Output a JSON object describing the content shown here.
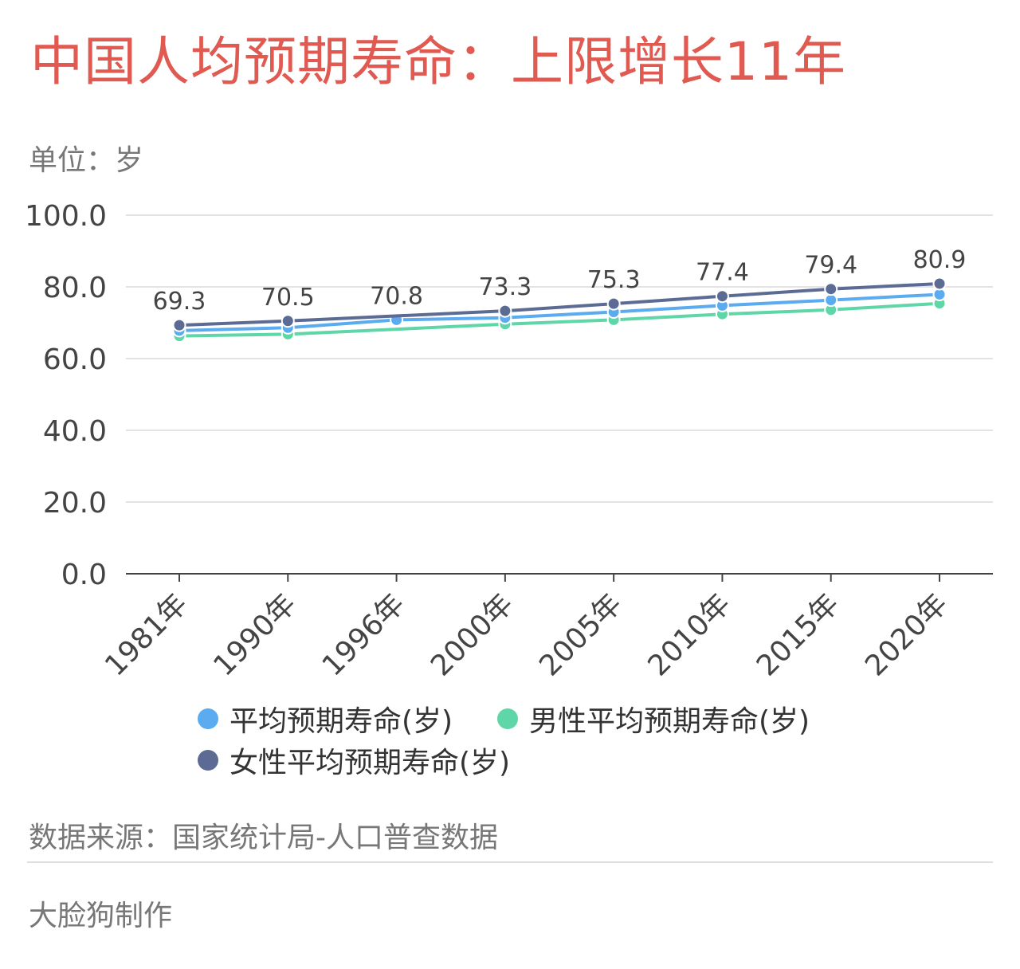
{
  "title": "中国人均预期寿命：上限增长11年",
  "unit": "单位：岁",
  "source": "数据来源：国家统计局-人口普查数据",
  "maker": "大脸狗制作",
  "colors": {
    "title": "#e05a52",
    "avg": "#5aabf0",
    "male": "#5fd6a8",
    "female": "#5b6b94"
  },
  "chart_data": {
    "type": "line",
    "categories": [
      "1981年",
      "1990年",
      "1996年",
      "2000年",
      "2005年",
      "2010年",
      "2015年",
      "2020年"
    ],
    "ylim": [
      0,
      100
    ],
    "yticks": [
      "100.0",
      "80.0",
      "60.0",
      "40.0",
      "20.0",
      "0.0"
    ],
    "grid": true,
    "legend_position": "bottom",
    "series": [
      {
        "name": "平均预期寿命(岁)",
        "color": "#5aabf0",
        "values": [
          67.8,
          68.6,
          70.8,
          71.4,
          73.0,
          74.8,
          76.3,
          77.9
        ]
      },
      {
        "name": "男性平均预期寿命(岁)",
        "color": "#5fd6a8",
        "values": [
          66.3,
          66.8,
          null,
          69.6,
          70.8,
          72.4,
          73.6,
          75.4
        ]
      },
      {
        "name": "女性平均预期寿命(岁)",
        "color": "#5b6b94",
        "values": [
          69.3,
          70.5,
          null,
          73.3,
          75.3,
          77.4,
          79.4,
          80.9
        ]
      }
    ],
    "data_labels": [
      "69.3",
      "70.5",
      "70.8",
      "73.3",
      "75.3",
      "77.4",
      "79.4",
      "80.9"
    ]
  }
}
